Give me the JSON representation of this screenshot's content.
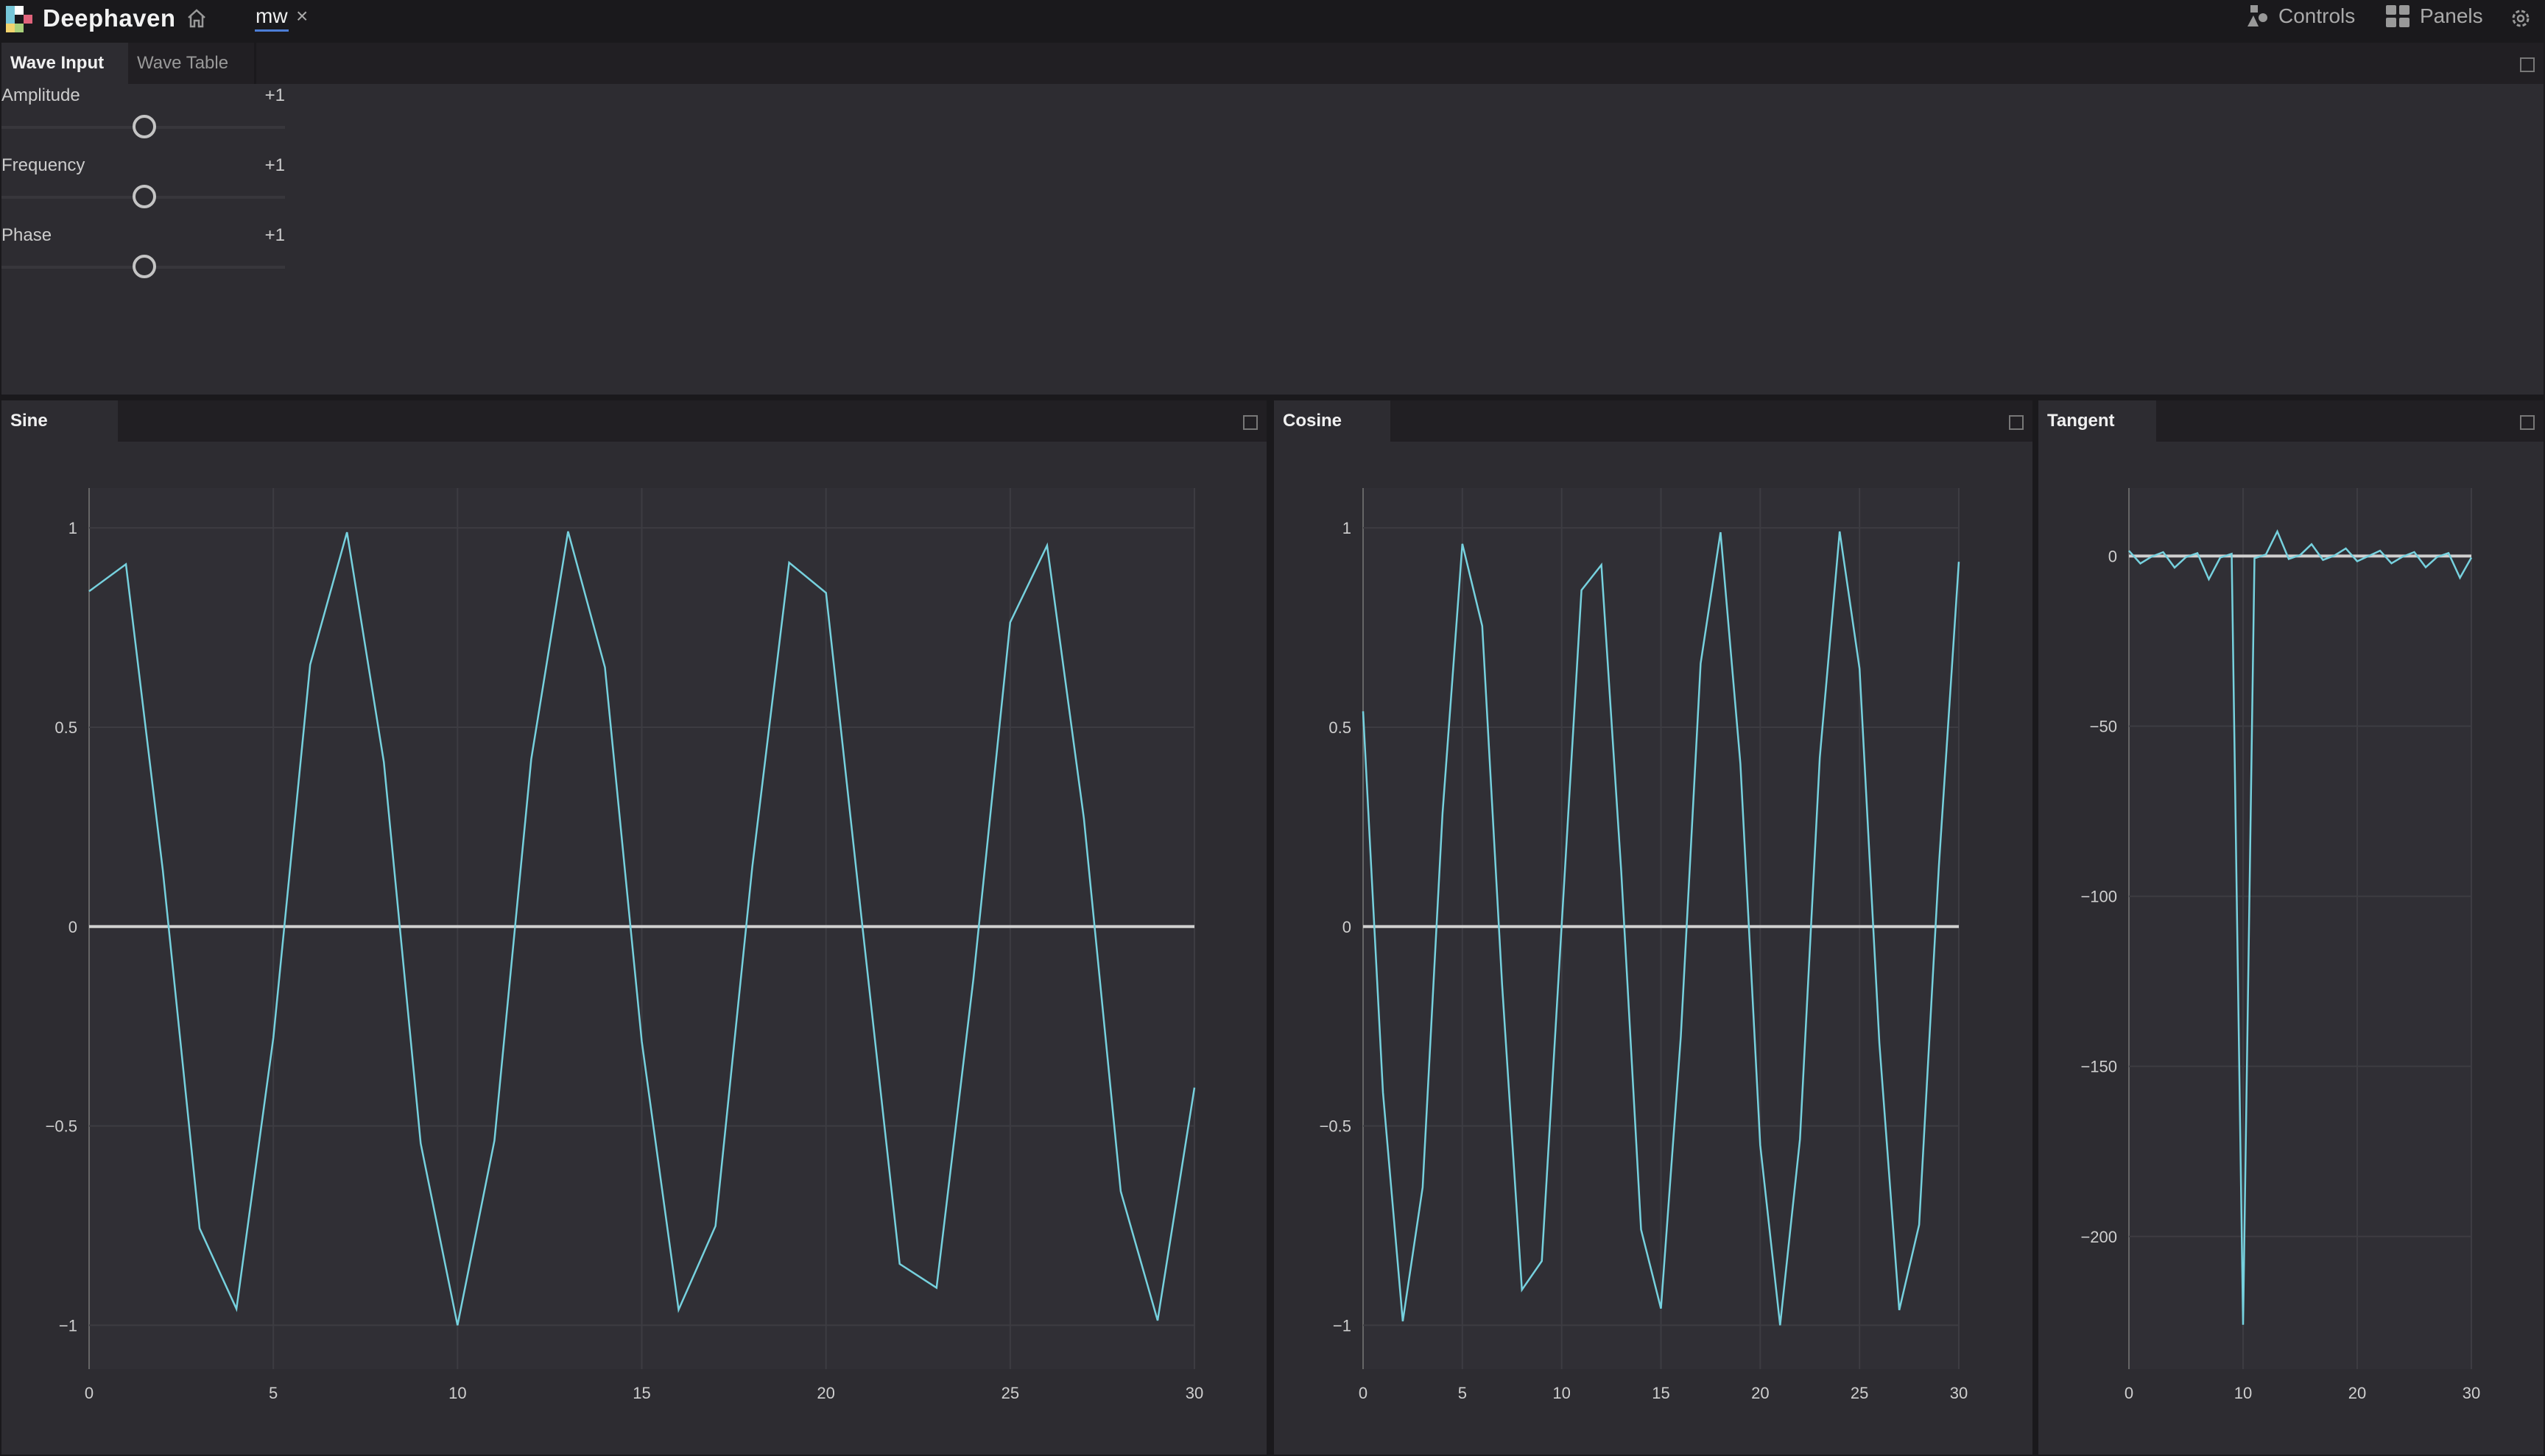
{
  "app": {
    "brand": "Deephaven",
    "dashboard_tab": "mw",
    "controls_label": "Controls",
    "panels_label": "Panels"
  },
  "wave_input_panel": {
    "tabs": [
      {
        "label": "Wave Input",
        "active": true
      },
      {
        "label": "Wave Table",
        "active": false
      }
    ],
    "sliders": [
      {
        "label": "Amplitude",
        "value_label": "+1",
        "value": 1
      },
      {
        "label": "Frequency",
        "value_label": "+1",
        "value": 1
      },
      {
        "label": "Phase",
        "value_label": "+1",
        "value": 1
      }
    ]
  },
  "colors": {
    "series": "#76d1de",
    "zero_line": "#d0d0d0",
    "grid": "#3d3c42",
    "plot_bg": "#302f35"
  },
  "chart_data": [
    {
      "panel_title": "Sine",
      "type": "line",
      "x": [
        0,
        1,
        2,
        3,
        4,
        5,
        6,
        7,
        8,
        9,
        10,
        11,
        12,
        13,
        14,
        15,
        16,
        17,
        18,
        19,
        20,
        21,
        22,
        23,
        24,
        25,
        26,
        27,
        28,
        29,
        30
      ],
      "values": [
        0.841,
        0.909,
        0.141,
        -0.757,
        -0.959,
        -0.279,
        0.657,
        0.989,
        0.412,
        -0.544,
        -1.0,
        -0.537,
        0.42,
        0.991,
        0.65,
        -0.288,
        -0.961,
        -0.751,
        0.15,
        0.913,
        0.837,
        -0.009,
        -0.846,
        -0.906,
        -0.132,
        0.763,
        0.956,
        0.271,
        -0.664,
        -0.988,
        -0.404
      ],
      "xlim": [
        0,
        30
      ],
      "ylim": [
        -1.11,
        1.1
      ],
      "xticks": [
        0,
        5,
        10,
        15,
        20,
        25,
        30
      ],
      "yticks": [
        -1,
        -0.5,
        0,
        0.5,
        1
      ],
      "ytick_labels": [
        "−1",
        "−0.5",
        "0",
        "0.5",
        "1"
      ],
      "grid": true
    },
    {
      "panel_title": "Cosine",
      "type": "line",
      "x": [
        0,
        1,
        2,
        3,
        4,
        5,
        6,
        7,
        8,
        9,
        10,
        11,
        12,
        13,
        14,
        15,
        16,
        17,
        18,
        19,
        20,
        21,
        22,
        23,
        24,
        25,
        26,
        27,
        28,
        29,
        30
      ],
      "values": [
        0.54,
        -0.416,
        -0.99,
        -0.654,
        0.284,
        0.96,
        0.754,
        -0.146,
        -0.911,
        -0.839,
        0.004,
        0.844,
        0.907,
        0.137,
        -0.76,
        -0.958,
        -0.275,
        0.66,
        0.989,
        0.408,
        -0.548,
        -1.0,
        -0.533,
        0.424,
        0.991,
        0.647,
        -0.292,
        -0.962,
        -0.748,
        0.154,
        0.915
      ],
      "xlim": [
        0,
        30
      ],
      "ylim": [
        -1.11,
        1.1
      ],
      "xticks": [
        0,
        5,
        10,
        15,
        20,
        25,
        30
      ],
      "yticks": [
        -1,
        -0.5,
        0,
        0.5,
        1
      ],
      "ytick_labels": [
        "−1",
        "−0.5",
        "0",
        "0.5",
        "1"
      ],
      "grid": true
    },
    {
      "panel_title": "Tangent",
      "type": "line",
      "x": [
        0,
        1,
        2,
        3,
        4,
        5,
        6,
        7,
        8,
        9,
        10,
        11,
        12,
        13,
        14,
        15,
        16,
        17,
        18,
        19,
        20,
        21,
        22,
        23,
        24,
        25,
        26,
        27,
        28,
        29,
        30
      ],
      "values": [
        1.557,
        -2.185,
        -0.143,
        1.158,
        -3.381,
        -0.291,
        0.871,
        -6.8,
        -0.452,
        0.648,
        -225.95,
        -0.636,
        0.463,
        7.244,
        -0.856,
        0.301,
        3.494,
        -1.138,
        0.152,
        2.237,
        -1.528,
        0.009,
        1.588,
        -2.135,
        -0.134,
        1.18,
        -3.274,
        -0.282,
        0.888,
        -6.405,
        -0.441
      ],
      "xlim": [
        0,
        30
      ],
      "ylim": [
        -239,
        20
      ],
      "xticks": [
        0,
        10,
        20,
        30
      ],
      "yticks": [
        -200,
        -150,
        -100,
        -50,
        0
      ],
      "ytick_labels": [
        "−200",
        "−150",
        "−100",
        "−50",
        "0"
      ],
      "grid": true
    }
  ]
}
